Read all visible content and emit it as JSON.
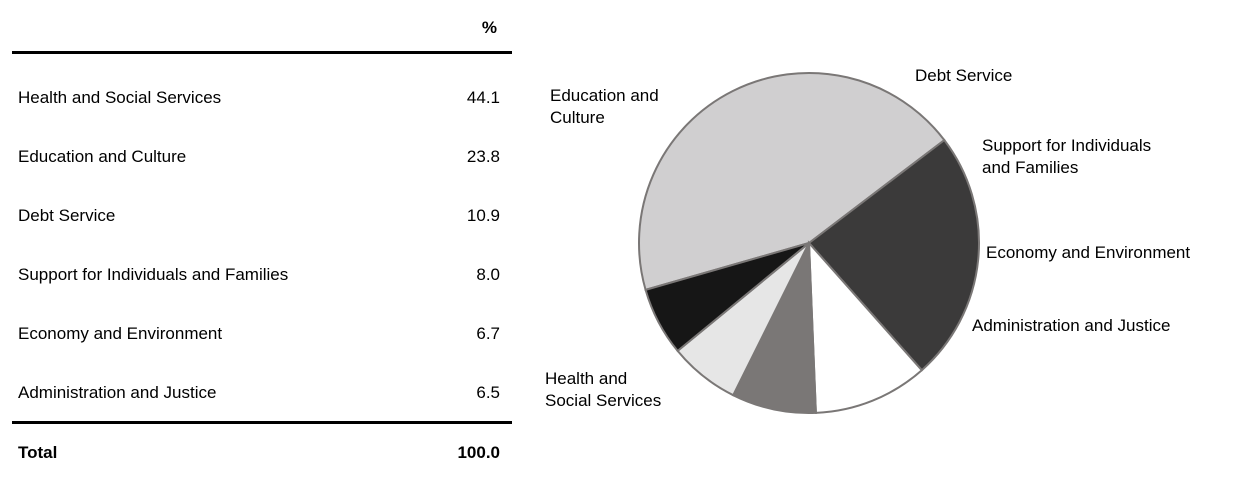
{
  "table": {
    "column_header": "%",
    "rows": [
      {
        "name": "Health and Social Services",
        "value": "44.1"
      },
      {
        "name": "Education and Culture",
        "value": "23.8"
      },
      {
        "name": "Debt Service",
        "value": "10.9"
      },
      {
        "name": "Support for Individuals and Families",
        "value": "8.0"
      },
      {
        "name": "Economy and Environment",
        "value": "6.7"
      },
      {
        "name": "Administration and Justice",
        "value": "6.5"
      }
    ],
    "total": {
      "name": "Total",
      "value": "100.0"
    }
  },
  "chart_data": {
    "type": "pie",
    "title": "",
    "slices": [
      {
        "label": "Health and Social Services",
        "value": 44.1,
        "color": "#d0cfd0",
        "label_lines": [
          "Health and",
          "Social Services"
        ]
      },
      {
        "label": "Education and Culture",
        "value": 23.8,
        "color": "#3b3a3a",
        "label_lines": [
          "Education and",
          "Culture"
        ]
      },
      {
        "label": "Debt Service",
        "value": 10.9,
        "color": "#ffffff",
        "label_lines": [
          "Debt Service"
        ]
      },
      {
        "label": "Support for Individuals and Families",
        "value": 8.0,
        "color": "#7a7776",
        "label_lines": [
          "Support for Individuals",
          "and Families"
        ]
      },
      {
        "label": "Economy and Environment",
        "value": 6.7,
        "color": "#e6e6e6",
        "label_lines": [
          "Economy and Environment"
        ]
      },
      {
        "label": "Administration and Justice",
        "value": 6.5,
        "color": "#161616",
        "label_lines": [
          "Administration and Justice"
        ]
      }
    ],
    "slice_order": "counterclockwise",
    "stroke_color": "#7a7776"
  }
}
